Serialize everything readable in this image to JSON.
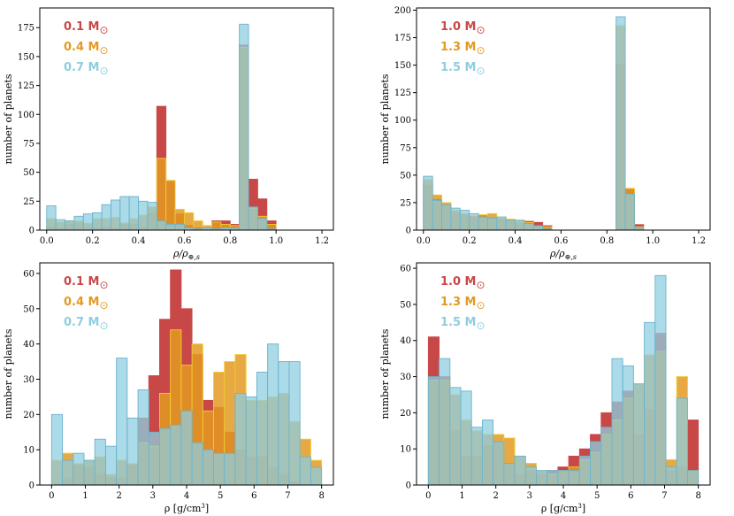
{
  "colors": {
    "red": "#c84848",
    "orange": "#e39a22",
    "orange_edge": "#f2cb2e",
    "blue": "#8fcde0",
    "blue_edge": "#6bb3cd"
  },
  "chart_data": [
    {
      "type": "bar",
      "id": "top-left",
      "xlabel": "ρ/ρ⊕,s",
      "ylabel": "number of planets",
      "xlim": [
        -0.03,
        1.25
      ],
      "ylim": [
        0,
        192
      ],
      "xticks": [
        0.0,
        0.2,
        0.4,
        0.6,
        0.8,
        1.0,
        1.2
      ],
      "xtick_labels": [
        "0.0",
        "0.2",
        "0.4",
        "0.6",
        "0.8",
        "1.0",
        "1.2"
      ],
      "yticks": [
        0,
        25,
        50,
        75,
        100,
        125,
        150,
        175
      ],
      "ytick_labels": [
        "0",
        "25",
        "50",
        "75",
        "100",
        "125",
        "150",
        "175"
      ],
      "bin_start": 0.0,
      "bin_width": 0.04,
      "legend": [
        "0.1 M⊙",
        "0.4 M⊙",
        "0.7 M⊙"
      ],
      "series": [
        {
          "name": "0.1 M⊙",
          "color_key": "red",
          "values": [
            3,
            2,
            5,
            6,
            3,
            2,
            3,
            2,
            6,
            5,
            3,
            15,
            107,
            42,
            14,
            4,
            2,
            2,
            8,
            8,
            5,
            160,
            44,
            27,
            8
          ]
        },
        {
          "name": "0.4 M⊙",
          "color_key": "orange",
          "values": [
            10,
            7,
            8,
            8,
            6,
            10,
            10,
            11,
            6,
            10,
            13,
            20,
            62,
            43,
            18,
            15,
            8,
            4,
            7,
            5,
            4,
            158,
            19,
            12,
            5
          ]
        },
        {
          "name": "0.7 M⊙",
          "color_key": "blue",
          "values": [
            21,
            9,
            8,
            12,
            14,
            15,
            22,
            26,
            29,
            29,
            25,
            24,
            8,
            5,
            5,
            2,
            1,
            2,
            1,
            2,
            2,
            178,
            20,
            10,
            1
          ]
        }
      ]
    },
    {
      "type": "bar",
      "id": "top-right",
      "xlabel": "ρ/ρ⊕,s",
      "ylabel": "number of planets",
      "xlim": [
        -0.03,
        1.25
      ],
      "ylim": [
        0,
        202
      ],
      "xticks": [
        0.0,
        0.2,
        0.4,
        0.6,
        0.8,
        1.0,
        1.2
      ],
      "xtick_labels": [
        "0.0",
        "0.2",
        "0.4",
        "0.6",
        "0.8",
        "1.0",
        "1.2"
      ],
      "yticks": [
        0,
        25,
        50,
        75,
        100,
        125,
        150,
        175,
        200
      ],
      "ytick_labels": [
        "0",
        "25",
        "50",
        "75",
        "100",
        "125",
        "150",
        "175",
        "200"
      ],
      "bin_start": 0.0,
      "bin_width": 0.04,
      "legend": [
        "1.0 M⊙",
        "1.3 M⊙",
        "1.5 M⊙"
      ],
      "series": [
        {
          "name": "1.0 M⊙",
          "color_key": "red",
          "values": [
            41,
            28,
            22,
            16,
            14,
            12,
            13,
            11,
            10,
            8,
            6,
            8,
            7,
            4,
            0,
            0,
            0,
            0,
            0,
            0,
            0,
            151,
            37,
            5,
            0
          ]
        },
        {
          "name": "1.3 M⊙",
          "color_key": "orange",
          "values": [
            46,
            32,
            25,
            18,
            15,
            13,
            14,
            15,
            11,
            10,
            9,
            7,
            4,
            3,
            0,
            0,
            0,
            0,
            0,
            0,
            0,
            186,
            38,
            3,
            0
          ]
        },
        {
          "name": "1.5 M⊙",
          "color_key": "blue",
          "values": [
            49,
            27,
            23,
            20,
            18,
            15,
            12,
            11,
            12,
            9,
            9,
            6,
            4,
            1,
            0,
            0,
            0,
            0,
            0,
            0,
            0,
            194,
            33,
            2,
            0
          ]
        }
      ]
    },
    {
      "type": "bar",
      "id": "bottom-left",
      "xlabel": "ρ [g/cm³]",
      "ylabel": "number of planets",
      "xlim": [
        -0.35,
        8.35
      ],
      "ylim": [
        0,
        63
      ],
      "xticks": [
        0,
        1,
        2,
        3,
        4,
        5,
        6,
        7,
        8
      ],
      "xtick_labels": [
        "0",
        "1",
        "2",
        "3",
        "4",
        "5",
        "6",
        "7",
        "8"
      ],
      "yticks": [
        0,
        10,
        20,
        30,
        40,
        50,
        60
      ],
      "ytick_labels": [
        "0",
        "10",
        "20",
        "30",
        "40",
        "50",
        "60"
      ],
      "bin_start": 0.0,
      "bin_width": 0.32,
      "legend": [
        "0.1 M⊙",
        "0.4 M⊙",
        "0.7 M⊙"
      ],
      "series": [
        {
          "name": "0.1 M⊙",
          "color_key": "red",
          "values": [
            0,
            2,
            6,
            5,
            3,
            2,
            2,
            6,
            19,
            31,
            47,
            61,
            50,
            37,
            24,
            22,
            15,
            10,
            8,
            8,
            5,
            3,
            1,
            0,
            0
          ]
        },
        {
          "name": "0.4 M⊙",
          "color_key": "orange",
          "values": [
            7,
            9,
            6,
            7,
            8,
            3,
            7,
            6,
            12,
            11,
            26,
            44,
            34,
            40,
            21,
            32,
            35,
            37,
            24,
            24,
            25,
            26,
            18,
            13,
            7
          ]
        },
        {
          "name": "0.7 M⊙",
          "color_key": "blue",
          "values": [
            20,
            7,
            9,
            7,
            13,
            11,
            36,
            19,
            27,
            15,
            16,
            17,
            21,
            12,
            10,
            9,
            9,
            26,
            25,
            32,
            40,
            35,
            35,
            8,
            5
          ]
        }
      ]
    },
    {
      "type": "bar",
      "id": "bottom-right",
      "xlabel": "ρ [g/cm³]",
      "ylabel": "number of planets",
      "xlim": [
        -0.35,
        8.35
      ],
      "ylim": [
        0,
        61.5
      ],
      "xticks": [
        0,
        1,
        2,
        3,
        4,
        5,
        6,
        7,
        8
      ],
      "xtick_labels": [
        "0",
        "1",
        "2",
        "3",
        "4",
        "5",
        "6",
        "7",
        "8"
      ],
      "yticks": [
        0,
        10,
        20,
        30,
        40,
        50,
        60
      ],
      "ytick_labels": [
        "0",
        "10",
        "20",
        "30",
        "40",
        "50",
        "60"
      ],
      "bin_start": 0.0,
      "bin_width": 0.32,
      "legend": [
        "1.0 M⊙",
        "1.3 M⊙",
        "1.5 M⊙"
      ],
      "series": [
        {
          "name": "1.0 M⊙",
          "color_key": "red",
          "values": [
            41,
            30,
            15,
            8,
            8,
            11,
            12,
            6,
            3,
            4,
            3,
            4,
            5,
            8,
            10,
            14,
            20,
            23,
            26,
            14,
            21,
            42,
            4,
            5,
            18
          ]
        },
        {
          "name": "1.3 M⊙",
          "color_key": "orange",
          "values": [
            29,
            29,
            25,
            18,
            15,
            14,
            14,
            13,
            8,
            6,
            4,
            3,
            4,
            5,
            7,
            9,
            14,
            18,
            24,
            28,
            36,
            37,
            7,
            30,
            4
          ]
        },
        {
          "name": "1.5 M⊙",
          "color_key": "blue",
          "values": [
            30,
            35,
            27,
            26,
            16,
            18,
            12,
            6,
            8,
            5,
            4,
            4,
            4,
            4,
            8,
            12,
            16,
            35,
            33,
            28,
            45,
            58,
            5,
            24,
            4
          ]
        }
      ]
    }
  ]
}
